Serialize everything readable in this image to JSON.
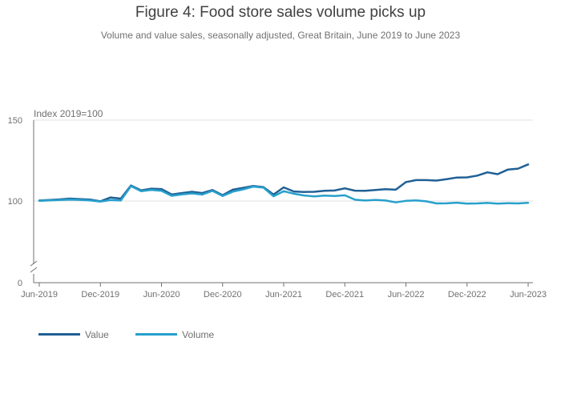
{
  "title": "Figure 4: Food store sales volume picks up",
  "subtitle": "Volume and value sales, seasonally adjusted, Great Britain, June 2019 to June 2023",
  "colors": {
    "value": "#206095",
    "volume": "#27a0cc",
    "grid": "#e0e0e0",
    "axis": "#707071",
    "text": "#414042"
  },
  "chart_data": {
    "type": "line",
    "title": "Figure 4: Food store sales volume picks up",
    "subtitle": "Volume and value sales, seasonally adjusted, Great Britain, June 2019 to June 2023",
    "ylabel": "Index 2019=100",
    "xlabel": "",
    "ylim": [
      0,
      150
    ],
    "axis_break": "between 0 and 100",
    "yticks": [
      {
        "value": 0,
        "label": "0"
      },
      {
        "value": 100,
        "label": "100"
      },
      {
        "value": 150,
        "label": "150"
      }
    ],
    "xtick_labels": [
      {
        "index": 0,
        "label": "Jun-2019"
      },
      {
        "index": 6,
        "label": "Dec-2019"
      },
      {
        "index": 12,
        "label": "Jun-2020"
      },
      {
        "index": 18,
        "label": "Dec-2020"
      },
      {
        "index": 24,
        "label": "Jun-2021"
      },
      {
        "index": 30,
        "label": "Dec-2021"
      },
      {
        "index": 36,
        "label": "Jun-2022"
      },
      {
        "index": 42,
        "label": "Dec-2022"
      },
      {
        "index": 48,
        "label": "Jun-2023"
      }
    ],
    "x": [
      "Jun-2019",
      "Jul-2019",
      "Aug-2019",
      "Sep-2019",
      "Oct-2019",
      "Nov-2019",
      "Dec-2019",
      "Jan-2020",
      "Feb-2020",
      "Mar-2020",
      "Apr-2020",
      "May-2020",
      "Jun-2020",
      "Jul-2020",
      "Aug-2020",
      "Sep-2020",
      "Oct-2020",
      "Nov-2020",
      "Dec-2020",
      "Jan-2021",
      "Feb-2021",
      "Mar-2021",
      "Apr-2021",
      "May-2021",
      "Jun-2021",
      "Jul-2021",
      "Aug-2021",
      "Sep-2021",
      "Oct-2021",
      "Nov-2021",
      "Dec-2021",
      "Jan-2022",
      "Feb-2022",
      "Mar-2022",
      "Apr-2022",
      "May-2022",
      "Jun-2022",
      "Jul-2022",
      "Aug-2022",
      "Sep-2022",
      "Oct-2022",
      "Nov-2022",
      "Dec-2022",
      "Jan-2023",
      "Feb-2023",
      "Mar-2023",
      "Apr-2023",
      "May-2023",
      "Jun-2023"
    ],
    "series": [
      {
        "name": "Value",
        "values": [
          100.3,
          100.6,
          101.0,
          101.5,
          101.2,
          100.9,
          99.6,
          102.2,
          101.5,
          109.6,
          106.6,
          107.6,
          107.4,
          104.0,
          104.9,
          105.7,
          104.9,
          106.8,
          103.6,
          107.0,
          108.1,
          109.3,
          108.6,
          104.0,
          108.4,
          105.9,
          105.6,
          105.7,
          106.3,
          106.5,
          107.8,
          106.4,
          106.3,
          106.8,
          107.3,
          107.0,
          111.7,
          112.9,
          112.9,
          112.6,
          113.5,
          114.5,
          114.6,
          115.7,
          117.7,
          116.6,
          119.4,
          120.0,
          122.6
        ]
      },
      {
        "name": "Volume",
        "values": [
          100.1,
          100.4,
          100.6,
          100.9,
          100.7,
          100.4,
          99.3,
          100.6,
          100.3,
          109.2,
          106.1,
          106.9,
          106.3,
          103.2,
          104.1,
          104.7,
          104.0,
          106.3,
          103.1,
          105.8,
          107.2,
          108.9,
          108.3,
          102.9,
          106.1,
          104.5,
          103.4,
          102.8,
          103.3,
          103.1,
          103.5,
          100.8,
          100.3,
          100.7,
          100.3,
          98.3,
          100.1,
          100.4,
          99.6,
          97.1,
          97.2,
          97.9,
          96.9,
          97.1,
          97.6,
          96.9,
          97.4,
          97.1,
          97.8
        ]
      }
    ],
    "legend": [
      "Value",
      "Volume"
    ],
    "legend_position": "bottom-left",
    "grid": true
  }
}
